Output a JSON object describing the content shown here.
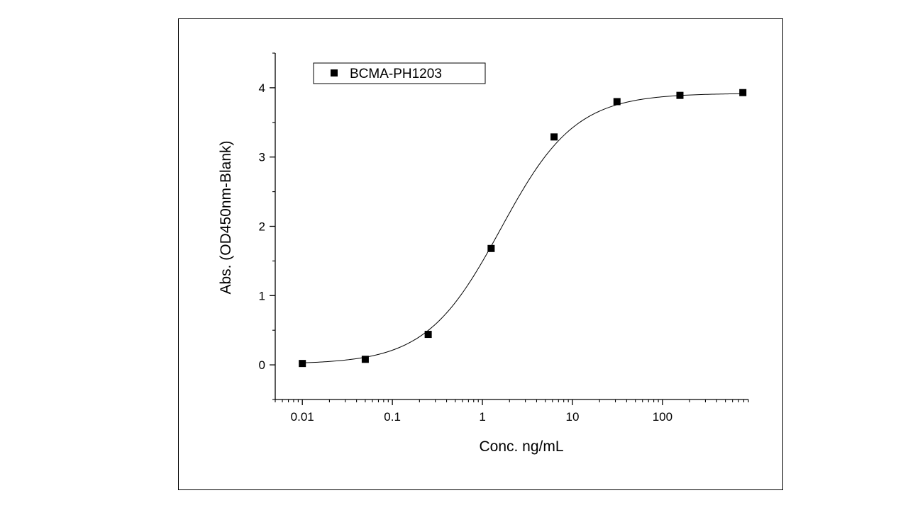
{
  "chart_data": {
    "type": "scatter",
    "xscale": "log",
    "xlabel": "Conc. ng/mL",
    "ylabel": "Abs. (OD450nm-Blank)",
    "xlim": [
      0.005,
      900
    ],
    "ylim": [
      -0.5,
      4.5
    ],
    "x_ticks": [
      0.01,
      0.1,
      1,
      10,
      100
    ],
    "x_tick_labels": [
      "0.01",
      "0.1",
      "1",
      "10",
      "100"
    ],
    "y_ticks": [
      0,
      1,
      2,
      3,
      4
    ],
    "y_tick_labels": [
      "0",
      "1",
      "2",
      "3",
      "4"
    ],
    "grid": false,
    "legend_position": "top-left",
    "series": [
      {
        "name": "BCMA-PH1203",
        "marker": "square",
        "color": "#000000",
        "x": [
          0.01,
          0.05,
          0.25,
          1.25,
          6.25,
          31.25,
          156.25,
          781.25
        ],
        "y": [
          0.02,
          0.08,
          0.44,
          1.68,
          3.29,
          3.8,
          3.89,
          3.93
        ]
      }
    ],
    "fit_curve": {
      "type": "4PL",
      "bottom": 0.01,
      "top": 3.92,
      "ec50": 1.6,
      "hill": 1.05
    }
  }
}
